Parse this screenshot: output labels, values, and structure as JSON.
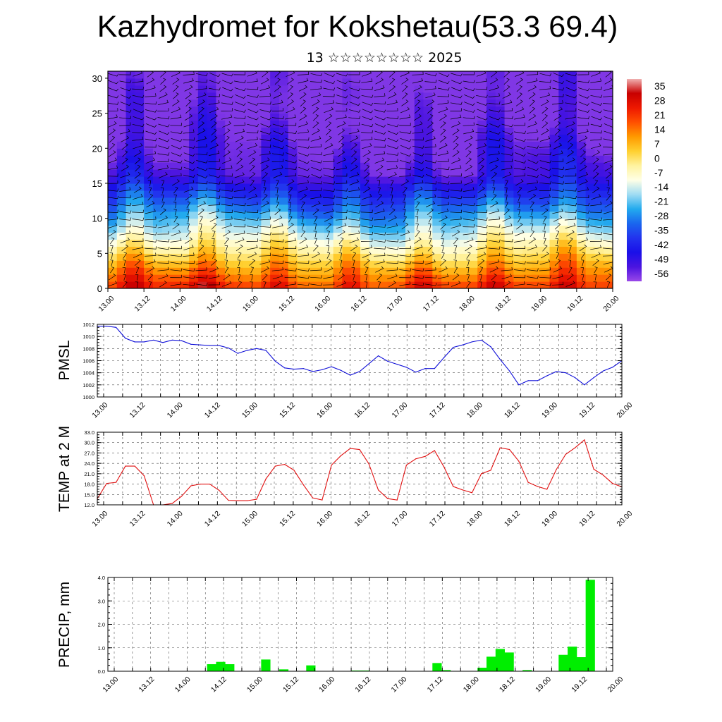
{
  "page": {
    "title": "Kazhydromet for Kokshetau(53.3 69.4)",
    "subtitle": "13 ☆☆☆☆☆☆☆☆ 2025"
  },
  "colors": {
    "pressure_line": "#1010d8",
    "temp_line": "#e01010",
    "precip_bar": "#00ee00",
    "frame": "#000000"
  },
  "time_labels": [
    "13.00",
    "13.12",
    "14.00",
    "14.12",
    "15.00",
    "15.12",
    "16.00",
    "16.12",
    "17.00",
    "17.12",
    "18.00",
    "18.12",
    "19.00",
    "19.12",
    "20.00"
  ],
  "chart_data": [
    {
      "id": "cross_section",
      "type": "heatmap",
      "title": "",
      "ylabel": "",
      "ylim": [
        0,
        31
      ],
      "yticks": [
        0,
        5,
        10,
        15,
        20,
        25,
        30
      ],
      "xlim": [
        0,
        14
      ],
      "description_values": "temperature by height level (0-30) and forecast time, with wind barbs",
      "colorbar": {
        "labels": [
          "35",
          "28",
          "21",
          "14",
          "7",
          "0",
          "-7",
          "-14",
          "-21",
          "-28",
          "-35",
          "-42",
          "-49",
          "-56"
        ],
        "stops": [
          {
            "t": 35,
            "color": "#f0b0b0"
          },
          {
            "t": 28,
            "color": "#c80000"
          },
          {
            "t": 21,
            "color": "#ee1800"
          },
          {
            "t": 14,
            "color": "#ff5000"
          },
          {
            "t": 7,
            "color": "#ff9a00"
          },
          {
            "t": 0,
            "color": "#ffd030"
          },
          {
            "t": -7,
            "color": "#fff3a0"
          },
          {
            "t": -14,
            "color": "#ffffe6"
          },
          {
            "t": -21,
            "color": "#9fdcf3"
          },
          {
            "t": -28,
            "color": "#22aaee"
          },
          {
            "t": -35,
            "color": "#1a66ee"
          },
          {
            "t": -42,
            "color": "#2233ee"
          },
          {
            "t": -49,
            "color": "#1a10e8"
          },
          {
            "t": -56,
            "color": "#4b14e0"
          },
          {
            "t": -62,
            "color": "#9a48e8"
          }
        ]
      }
    },
    {
      "id": "pmsl",
      "type": "line",
      "ylabel": "PMSL",
      "ylim": [
        1000,
        1012
      ],
      "yticks": [
        "1000",
        "1002",
        "1004",
        "1006",
        "1008",
        "1010",
        "1012"
      ],
      "x_step": 0.25,
      "values": [
        1011.7,
        1011.7,
        1011.5,
        1009.7,
        1009.1,
        1009.1,
        1009.4,
        1009.0,
        1009.4,
        1009.3,
        1008.7,
        1008.6,
        1008.5,
        1008.5,
        1008.1,
        1007.2,
        1007.7,
        1008.0,
        1007.7,
        1005.9,
        1004.8,
        1004.6,
        1004.7,
        1004.2,
        1004.5,
        1005.0,
        1004.4,
        1003.6,
        1004.2,
        1005.5,
        1006.8,
        1005.9,
        1005.4,
        1004.9,
        1004.1,
        1004.7,
        1004.7,
        1006.5,
        1008.2,
        1008.6,
        1009.1,
        1009.4,
        1008.3,
        1006.2,
        1004.3,
        1002.0,
        1002.7,
        1002.7,
        1003.5,
        1004.2,
        1004.0,
        1003.2,
        1002.0,
        1003.2,
        1004.3,
        1004.9,
        1006.0
      ]
    },
    {
      "id": "temp2m",
      "type": "line",
      "ylabel": "TEMP at 2 M",
      "ylim": [
        12,
        33
      ],
      "yticks": [
        "12.0",
        "15.0",
        "18.0",
        "21.0",
        "24.0",
        "27.0",
        "30.0",
        "33.0"
      ],
      "x_step": 0.25,
      "values": [
        13.8,
        18.2,
        18.5,
        23.2,
        23.2,
        20.4,
        12.0,
        12.0,
        12.4,
        14.5,
        17.5,
        18.0,
        18.0,
        16.2,
        13.3,
        13.2,
        13.2,
        13.6,
        19.5,
        23.2,
        23.7,
        22.0,
        17.8,
        14.0,
        13.4,
        23.5,
        26.2,
        28.3,
        28.0,
        23.8,
        16.3,
        13.8,
        13.4,
        23.5,
        25.3,
        26.0,
        27.7,
        23.0,
        17.3,
        16.3,
        15.5,
        21.0,
        22.0,
        28.5,
        28.0,
        24.6,
        18.5,
        17.3,
        16.5,
        22.2,
        26.6,
        28.5,
        30.8,
        22.3,
        20.6,
        18.2,
        17.2
      ]
    },
    {
      "id": "precip",
      "type": "bar",
      "ylabel": "PRECIP, mm",
      "ylim": [
        0,
        4
      ],
      "yticks": [
        "0.0",
        "1.0",
        "2.0",
        "3.0",
        "4.0"
      ],
      "x_step": 0.25,
      "values": [
        0,
        0,
        0,
        0,
        0,
        0,
        0,
        0,
        0,
        0,
        0,
        0.3,
        0.4,
        0.3,
        0,
        0,
        0,
        0.5,
        0,
        0.08,
        0,
        0,
        0.25,
        0,
        0,
        0,
        0,
        0.03,
        0.03,
        0,
        0,
        0,
        0,
        0,
        0,
        0,
        0.35,
        0.05,
        0,
        0,
        0,
        0.15,
        0.62,
        0.95,
        0.8,
        0,
        0.05,
        0,
        0,
        0,
        0.7,
        1.05,
        0.6,
        3.9,
        0,
        0,
        0
      ]
    }
  ]
}
